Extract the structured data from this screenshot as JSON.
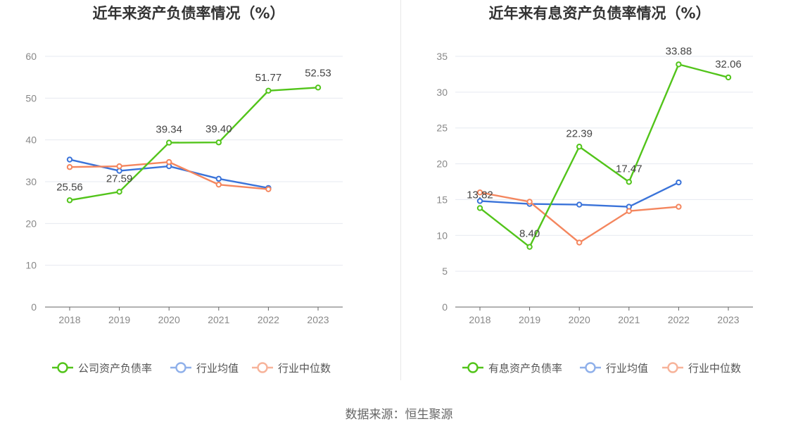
{
  "colors": {
    "company": "#52c41a",
    "industry_avg": "#3a73d9",
    "industry_median": "#f4865e",
    "grid": "#e6e9f0",
    "axis": "#666666",
    "tick_text": "#888888",
    "title": "#333333",
    "divider": "#e8e8e8"
  },
  "source": "数据来源：恒生聚源",
  "chart_data": [
    {
      "type": "line",
      "title": "近年来资产负债率情况（%）",
      "categories": [
        "2018",
        "2019",
        "2020",
        "2021",
        "2022",
        "2023"
      ],
      "ylim": [
        0,
        60
      ],
      "yticks": [
        0,
        10,
        20,
        30,
        40,
        50,
        60
      ],
      "grid": true,
      "legend_position": "bottom",
      "series": [
        {
          "name": "公司资产负债率",
          "color_key": "company",
          "values": [
            25.56,
            27.59,
            39.34,
            39.4,
            51.77,
            52.53
          ],
          "labels": [
            "25.56",
            "27.59",
            "39.34",
            "39.40",
            "51.77",
            "52.53"
          ]
        },
        {
          "name": "行业均值",
          "color_key": "industry_avg",
          "values": [
            35.3,
            32.6,
            33.7,
            30.7,
            28.5,
            null
          ]
        },
        {
          "name": "行业中位数",
          "color_key": "industry_median",
          "values": [
            33.5,
            33.7,
            34.7,
            29.3,
            28.2,
            null
          ]
        }
      ]
    },
    {
      "type": "line",
      "title": "近年来有息资产负债率情况（%）",
      "categories": [
        "2018",
        "2019",
        "2020",
        "2021",
        "2022",
        "2023"
      ],
      "ylim": [
        0,
        35
      ],
      "yticks": [
        0,
        5,
        10,
        15,
        20,
        25,
        30,
        35
      ],
      "grid": true,
      "legend_position": "bottom",
      "series": [
        {
          "name": "有息资产负债率",
          "color_key": "company",
          "values": [
            13.82,
            8.4,
            22.39,
            17.47,
            33.88,
            32.06
          ],
          "labels": [
            "13.82",
            "8.40",
            "22.39",
            "17.47",
            "33.88",
            "32.06"
          ]
        },
        {
          "name": "行业均值",
          "color_key": "industry_avg",
          "values": [
            14.8,
            14.4,
            14.3,
            14.0,
            17.4,
            null
          ]
        },
        {
          "name": "行业中位数",
          "color_key": "industry_median",
          "values": [
            16.0,
            14.7,
            9.0,
            13.4,
            14.0,
            null
          ]
        }
      ]
    }
  ]
}
